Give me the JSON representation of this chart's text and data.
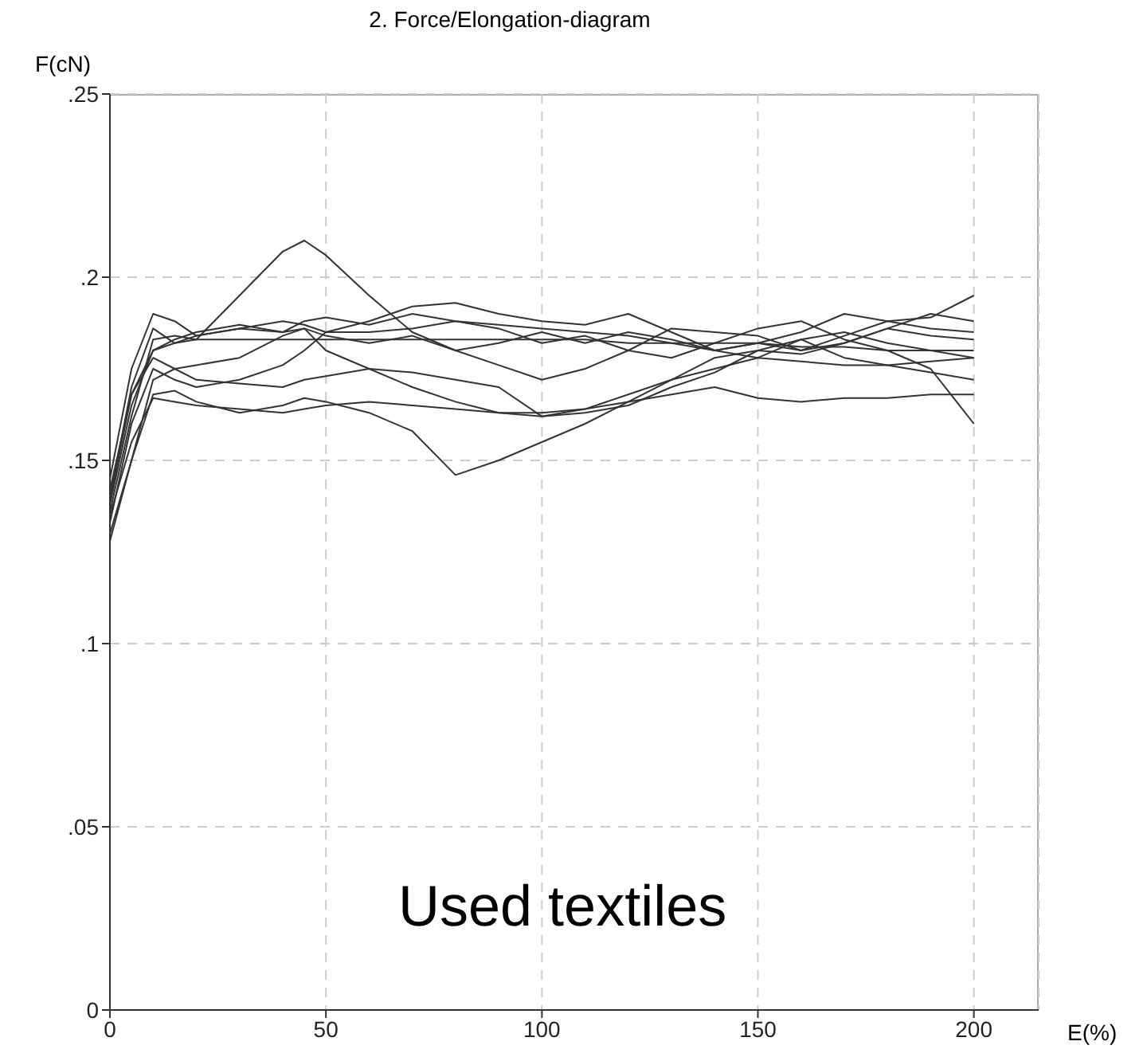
{
  "chart_data": {
    "type": "line",
    "title": "2.  Force/Elongation-diagram",
    "xlabel": "E(%)",
    "ylabel": "F(cN)",
    "annotations": [
      "Used textiles"
    ],
    "x": [
      0,
      5,
      10,
      15,
      20,
      30,
      40,
      45,
      50,
      60,
      70,
      80,
      90,
      100,
      110,
      120,
      130,
      140,
      150,
      160,
      170,
      180,
      190,
      200
    ],
    "xlim": [
      0,
      215
    ],
    "xticks": [
      0,
      50,
      100,
      150,
      200
    ],
    "ylim": [
      0,
      0.25
    ],
    "yticks": [
      {
        "value": 0,
        "label": "0"
      },
      {
        "value": 0.05,
        "label": ".05"
      },
      {
        "value": 0.1,
        "label": ".1"
      },
      {
        "value": 0.15,
        "label": ".15"
      },
      {
        "value": 0.2,
        "label": ".2"
      },
      {
        "value": 0.25,
        "label": ".25"
      }
    ],
    "grid": true,
    "series": [
      {
        "color": "#333333",
        "values": [
          0.14,
          0.17,
          0.186,
          0.182,
          0.183,
          0.195,
          0.207,
          0.21,
          0.206,
          0.195,
          0.185,
          0.18,
          0.176,
          0.172,
          0.175,
          0.18,
          0.186,
          0.185,
          0.184,
          0.18,
          0.182,
          0.186,
          0.184,
          0.183
        ]
      },
      {
        "color": "#333333",
        "values": [
          0.13,
          0.15,
          0.168,
          0.169,
          0.166,
          0.163,
          0.165,
          0.167,
          0.166,
          0.163,
          0.158,
          0.146,
          0.15,
          0.155,
          0.16,
          0.166,
          0.172,
          0.178,
          0.18,
          0.179,
          0.182,
          0.186,
          0.19,
          0.188
        ]
      },
      {
        "color": "#333333",
        "values": [
          0.135,
          0.155,
          0.167,
          0.166,
          0.165,
          0.164,
          0.163,
          0.164,
          0.165,
          0.166,
          0.165,
          0.164,
          0.163,
          0.163,
          0.164,
          0.166,
          0.168,
          0.17,
          0.167,
          0.166,
          0.167,
          0.167,
          0.168,
          0.168
        ]
      },
      {
        "color": "#333333",
        "values": [
          0.145,
          0.175,
          0.19,
          0.188,
          0.184,
          0.186,
          0.188,
          0.187,
          0.185,
          0.185,
          0.186,
          0.188,
          0.186,
          0.182,
          0.184,
          0.18,
          0.178,
          0.182,
          0.186,
          0.188,
          0.183,
          0.18,
          0.175,
          0.16
        ]
      },
      {
        "color": "#333333",
        "values": [
          0.138,
          0.165,
          0.18,
          0.182,
          0.184,
          0.186,
          0.185,
          0.188,
          0.189,
          0.187,
          0.19,
          0.188,
          0.187,
          0.186,
          0.185,
          0.184,
          0.182,
          0.18,
          0.178,
          0.183,
          0.185,
          0.182,
          0.18,
          0.178
        ]
      },
      {
        "color": "#333333",
        "values": [
          0.142,
          0.168,
          0.178,
          0.175,
          0.172,
          0.171,
          0.17,
          0.172,
          0.173,
          0.175,
          0.174,
          0.172,
          0.17,
          0.162,
          0.164,
          0.168,
          0.172,
          0.175,
          0.178,
          0.177,
          0.176,
          0.176,
          0.177,
          0.178
        ]
      },
      {
        "color": "#333333",
        "values": [
          0.133,
          0.16,
          0.175,
          0.172,
          0.17,
          0.172,
          0.176,
          0.18,
          0.185,
          0.188,
          0.192,
          0.193,
          0.19,
          0.188,
          0.187,
          0.19,
          0.185,
          0.18,
          0.182,
          0.185,
          0.19,
          0.188,
          0.189,
          0.195
        ]
      },
      {
        "color": "#333333",
        "values": [
          0.136,
          0.162,
          0.183,
          0.184,
          0.183,
          0.183,
          0.183,
          0.183,
          0.183,
          0.183,
          0.183,
          0.183,
          0.183,
          0.183,
          0.183,
          0.182,
          0.182,
          0.182,
          0.182,
          0.181,
          0.181,
          0.18,
          0.18,
          0.18
        ]
      },
      {
        "color": "#333333",
        "values": [
          0.139,
          0.168,
          0.18,
          0.183,
          0.185,
          0.187,
          0.185,
          0.186,
          0.184,
          0.182,
          0.184,
          0.18,
          0.182,
          0.185,
          0.182,
          0.185,
          0.183,
          0.18,
          0.182,
          0.18,
          0.184,
          0.188,
          0.186,
          0.185
        ]
      },
      {
        "color": "#333333",
        "values": [
          0.128,
          0.15,
          0.172,
          0.175,
          0.176,
          0.178,
          0.184,
          0.186,
          0.18,
          0.175,
          0.17,
          0.166,
          0.163,
          0.162,
          0.163,
          0.165,
          0.17,
          0.174,
          0.18,
          0.183,
          0.178,
          0.176,
          0.174,
          0.172
        ]
      }
    ]
  }
}
